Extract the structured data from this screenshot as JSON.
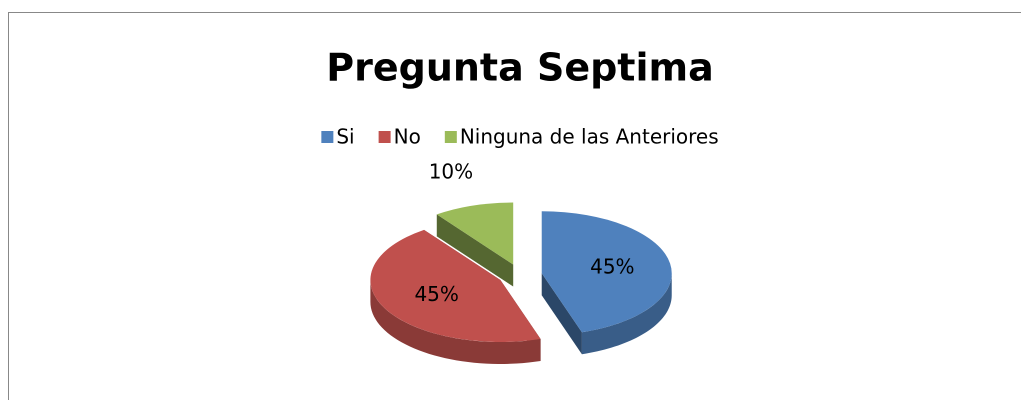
{
  "chart_data": {
    "type": "pie",
    "title": "Pregunta Septima",
    "categories": [
      "Si",
      "No",
      "Ninguna de las Anteriores"
    ],
    "values": [
      45,
      45,
      10
    ],
    "value_labels": [
      "45%",
      "45%",
      "10%"
    ],
    "colors": [
      "#4f81bd",
      "#c0504d",
      "#9bbb59"
    ],
    "legend": "top"
  }
}
